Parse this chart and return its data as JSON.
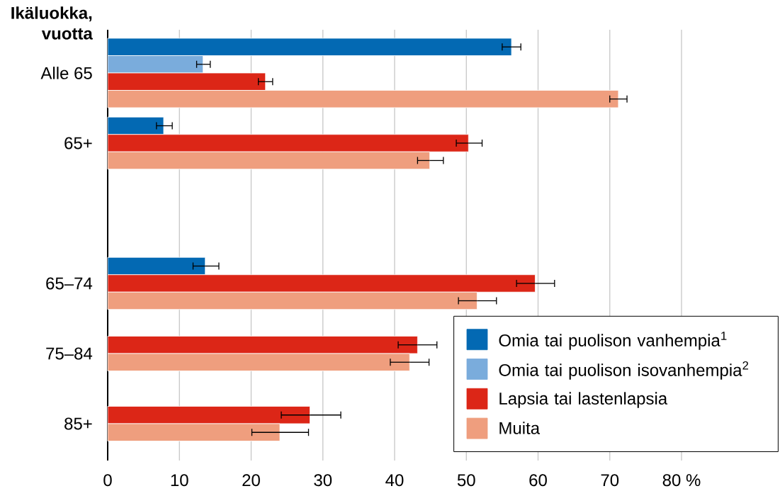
{
  "chart_data": {
    "type": "bar",
    "orientation": "horizontal",
    "ylabel": "Ikäluokka, vuotta",
    "categories": [
      "Alle 65",
      "65+",
      null,
      "65–74",
      "75–84",
      "85+"
    ],
    "series": [
      {
        "name": "Omia tai puolison vanhempia$^{1}$",
        "color": "#0369b3",
        "values": [
          56.3,
          7.8,
          null,
          13.6,
          null,
          null
        ],
        "errors": [
          [
            55.0,
            57.6
          ],
          [
            6.8,
            9.0
          ],
          null,
          [
            11.9,
            15.5
          ],
          null,
          null
        ]
      },
      {
        "name": "Omia tai puolison isovanhempia$^{2}$",
        "color": "#7aacdc",
        "values": [
          13.3,
          null,
          null,
          null,
          null,
          null
        ],
        "errors": [
          [
            12.4,
            14.3
          ],
          null,
          null,
          null,
          null,
          null
        ]
      },
      {
        "name": "Lapsia tai lastenlapsia",
        "color": "#dc2617",
        "values": [
          22.0,
          50.3,
          null,
          59.6,
          43.2,
          28.2
        ],
        "errors": [
          [
            21.0,
            23.0
          ],
          [
            48.6,
            52.2
          ],
          null,
          [
            57.0,
            62.3
          ],
          [
            40.5,
            45.9
          ],
          [
            24.2,
            32.5
          ]
        ]
      },
      {
        "name": "Muita",
        "color": "#ef9e7e",
        "values": [
          71.2,
          44.9,
          null,
          51.5,
          42.1,
          24.0
        ],
        "errors": [
          [
            70.0,
            72.4
          ],
          [
            43.2,
            46.8
          ],
          null,
          [
            48.9,
            54.2
          ],
          [
            39.4,
            44.8
          ],
          [
            20.1,
            28.0
          ]
        ]
      }
    ],
    "xlim": [
      0,
      80
    ],
    "xticks": [
      0,
      10,
      20,
      30,
      40,
      50,
      60,
      70,
      {
        "value": 80,
        "label": "80 %"
      }
    ],
    "grid": "x",
    "legend": "bottom right"
  }
}
